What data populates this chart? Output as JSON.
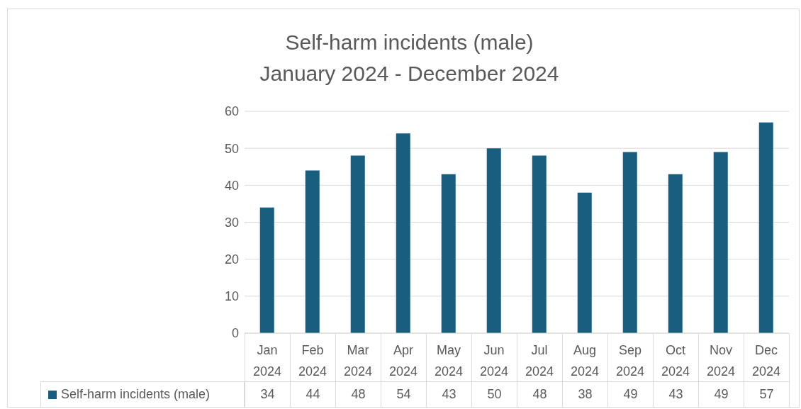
{
  "chart_data": {
    "type": "bar",
    "title": "Self-harm incidents (male)",
    "subtitle": "January 2024 - December 2024",
    "categories": [
      "Jan 2024",
      "Feb 2024",
      "Mar 2024",
      "Apr 2024",
      "May 2024",
      "Jun 2024",
      "Jul 2024",
      "Aug 2024",
      "Sep 2024",
      "Oct 2024",
      "Nov 2024",
      "Dec 2024"
    ],
    "series": [
      {
        "name": "Self-harm incidents (male)",
        "color": "#175e7f",
        "values": [
          34,
          44,
          48,
          54,
          43,
          50,
          48,
          38,
          49,
          43,
          49,
          57
        ]
      }
    ],
    "ylim": [
      0,
      60
    ],
    "yticks": [
      0,
      10,
      20,
      30,
      40,
      50,
      60
    ],
    "grid": "y",
    "legend": "bottom",
    "data_labels": true
  }
}
